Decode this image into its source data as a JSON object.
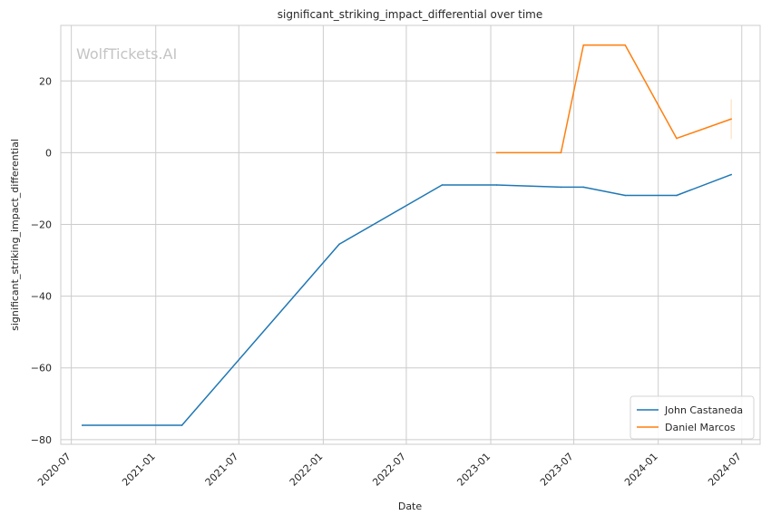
{
  "chart_data": {
    "type": "line",
    "title": "significant_striking_impact_differential over time",
    "xlabel": "Date",
    "ylabel": "significant_striking_impact_differential",
    "watermark": "WolfTickets.AI",
    "grid": true,
    "legend_position": "lower right",
    "xlim": [
      "2020-06-08",
      "2024-08-10"
    ],
    "ylim": [
      -81.3,
      35.5
    ],
    "x_ticks": [
      "2020-07",
      "2021-01",
      "2021-07",
      "2022-01",
      "2022-07",
      "2023-01",
      "2023-07",
      "2024-01",
      "2024-07"
    ],
    "y_ticks": [
      20,
      0,
      -20,
      -40,
      -60,
      -80
    ],
    "y_tick_labels": [
      "20",
      "0",
      "−20",
      "−40",
      "−60",
      "−80"
    ],
    "series": [
      {
        "name": "John Castaneda",
        "color": "#1f77b4",
        "points": [
          {
            "x": "2020-07-25",
            "y": -76
          },
          {
            "x": "2021-02-27",
            "y": -76
          },
          {
            "x": "2022-02-05",
            "y": -25.5
          },
          {
            "x": "2022-09-17",
            "y": -9
          },
          {
            "x": "2023-01-14",
            "y": -9
          },
          {
            "x": "2023-06-03",
            "y": -9.6
          },
          {
            "x": "2023-07-22",
            "y": -9.6
          },
          {
            "x": "2023-10-21",
            "y": -11.9
          },
          {
            "x": "2024-02-10",
            "y": -11.9
          },
          {
            "x": "2024-06-08",
            "y": -6.1
          }
        ]
      },
      {
        "name": "Daniel Marcos",
        "color": "#ff7f0e",
        "points": [
          {
            "x": "2023-01-14",
            "y": 0
          },
          {
            "x": "2023-06-03",
            "y": 0
          },
          {
            "x": "2023-07-22",
            "y": 30
          },
          {
            "x": "2023-10-21",
            "y": 30
          },
          {
            "x": "2024-02-10",
            "y": 4
          },
          {
            "x": "2024-06-08",
            "y": 9.4
          }
        ],
        "error_band": {
          "x": "2024-06-08",
          "y_low": 3.8,
          "y_high": 14.9
        }
      }
    ]
  }
}
